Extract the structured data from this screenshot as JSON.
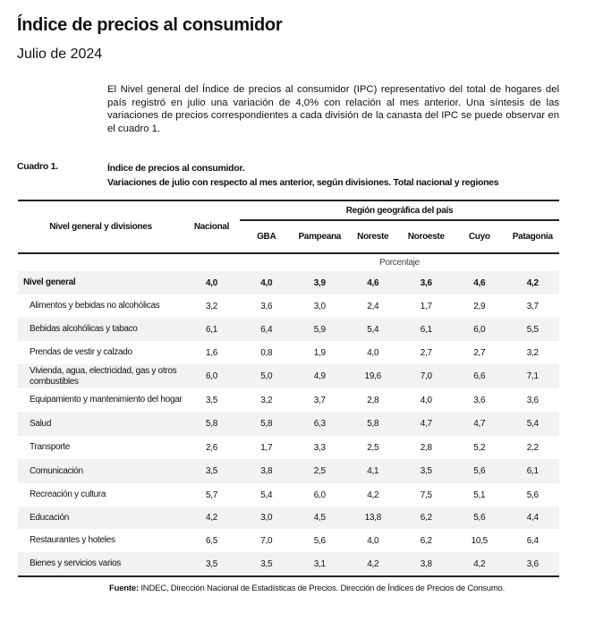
{
  "title": "Índice de precios al consumidor",
  "subtitle": "Julio de 2024",
  "paragraph": "El Nivel general del Índice de precios al consumidor (IPC) representativo del total de hogares del país registró en julio una variación de 4,0% con relación al mes anterior. Una síntesis de las variaciones de precios correspondientes a cada división de la canasta del IPC se puede observar en el cuadro 1.",
  "table": {
    "label": "Cuadro 1.",
    "title_line1": "Índice de precios al consumidor.",
    "title_line2": "Variaciones de julio con respecto al mes anterior, según divisiones. Total nacional y regiones",
    "col_label": "Nivel general y divisiones",
    "col_nacional": "Nacional",
    "region_header": "Región geográfica del país",
    "regions": [
      "GBA",
      "Pampeana",
      "Noreste",
      "Noroeste",
      "Cuyo",
      "Patagonia"
    ],
    "unit": "Porcentaje",
    "rows": [
      {
        "label": "Nivel general",
        "values": [
          "4,0",
          "4,0",
          "3,9",
          "4,6",
          "3,6",
          "4,6",
          "4,2"
        ]
      },
      {
        "label": "Alimentos y bebidas no alcohólicas",
        "values": [
          "3,2",
          "3,6",
          "3,0",
          "2,4",
          "1,7",
          "2,9",
          "3,7"
        ]
      },
      {
        "label": "Bebidas alcohólicas y tabaco",
        "values": [
          "6,1",
          "6,4",
          "5,9",
          "5,4",
          "6,1",
          "6,0",
          "5,5"
        ]
      },
      {
        "label": "Prendas de vestir y calzado",
        "values": [
          "1,6",
          "0,8",
          "1,9",
          "4,0",
          "2,7",
          "2,7",
          "3,2"
        ]
      },
      {
        "label": "Vivienda, agua, electricidad, gas y otros combustibles",
        "values": [
          "6,0",
          "5,0",
          "4,9",
          "19,6",
          "7,0",
          "6,6",
          "7,1"
        ]
      },
      {
        "label": "Equipamiento y mantenimiento del hogar",
        "values": [
          "3,5",
          "3,2",
          "3,7",
          "2,8",
          "4,0",
          "3,6",
          "3,6"
        ]
      },
      {
        "label": "Salud",
        "values": [
          "5,8",
          "5,8",
          "6,3",
          "5,8",
          "4,7",
          "4,7",
          "5,4"
        ]
      },
      {
        "label": "Transporte",
        "values": [
          "2,6",
          "1,7",
          "3,3",
          "2,5",
          "2,8",
          "5,2",
          "2,2"
        ]
      },
      {
        "label": "Comunicación",
        "values": [
          "3,5",
          "3,8",
          "2,5",
          "4,1",
          "3,5",
          "5,6",
          "6,1"
        ]
      },
      {
        "label": "Recreación y cultura",
        "values": [
          "5,7",
          "5,4",
          "6,0",
          "4,2",
          "7,5",
          "5,1",
          "5,6"
        ]
      },
      {
        "label": "Educación",
        "values": [
          "4,2",
          "3,0",
          "4,5",
          "13,8",
          "6,2",
          "5,6",
          "4,4"
        ]
      },
      {
        "label": "Restaurantes y hoteles",
        "values": [
          "6,5",
          "7,0",
          "5,6",
          "4,0",
          "6,2",
          "10,5",
          "6,4"
        ]
      },
      {
        "label": "Bienes y servicios varios",
        "values": [
          "3,5",
          "3,5",
          "3,1",
          "4,2",
          "3,8",
          "4,2",
          "3,6"
        ]
      }
    ],
    "source_label": "Fuente:",
    "source_text": " INDEC, Dirección Nacional de Estadísticas de Precios. Dirección de Índices de Precios de Consumo."
  }
}
